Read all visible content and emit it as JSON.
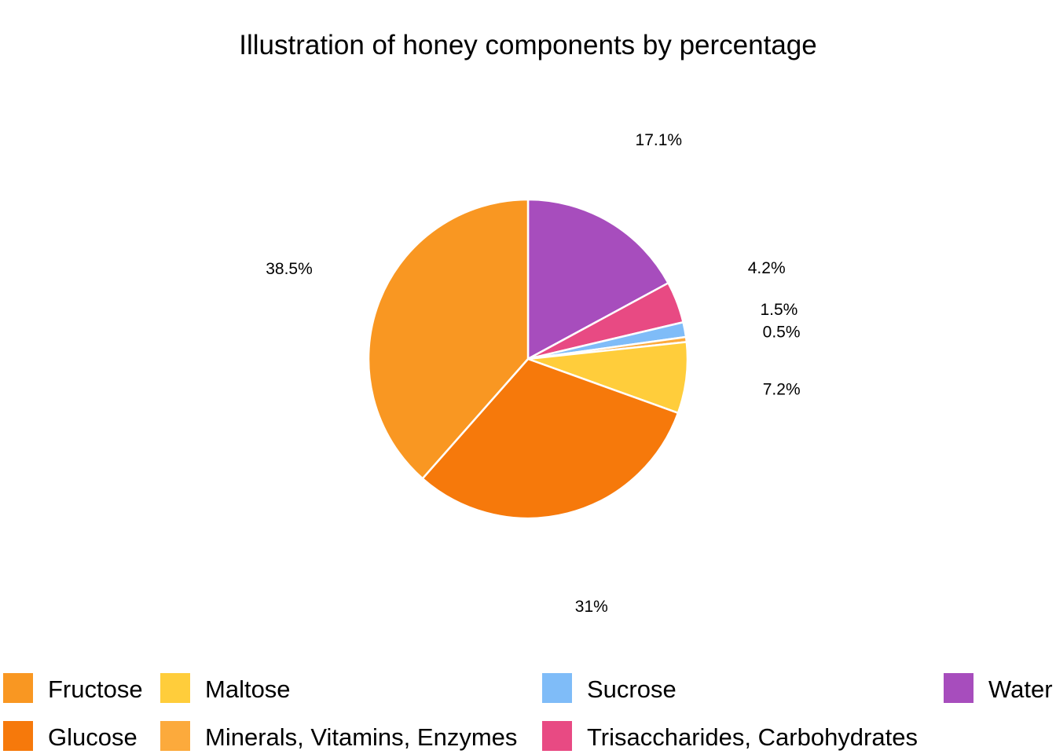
{
  "chart_data": {
    "type": "pie",
    "title": "Illustration of honey components by percentage",
    "slices": [
      {
        "name": "Fructose",
        "value": 38.5,
        "label": "38.5%",
        "color": "#F99722"
      },
      {
        "name": "Glucose",
        "value": 31,
        "label": "31%",
        "color": "#F6790B"
      },
      {
        "name": "Maltose",
        "value": 7.2,
        "label": "7.2%",
        "color": "#FFCD3B"
      },
      {
        "name": "Minerals, Vitamins, Enzymes",
        "value": 0.5,
        "label": "0.5%",
        "color": "#FCAA3C"
      },
      {
        "name": "Sucrose",
        "value": 1.5,
        "label": "1.5%",
        "color": "#7FBCF8"
      },
      {
        "name": "Trisaccharides, Carbohydrates",
        "value": 4.2,
        "label": "4.2%",
        "color": "#E84A83"
      },
      {
        "name": "Water",
        "value": 17.1,
        "label": "17.1%",
        "color": "#A74DBD"
      }
    ],
    "legend": {
      "position": "bottom",
      "order": [
        "Fructose",
        "Glucose",
        "Maltose",
        "Minerals, Vitamins, Enzymes",
        "Sucrose",
        "Trisaccharides, Carbohydrates",
        "Water"
      ]
    }
  }
}
